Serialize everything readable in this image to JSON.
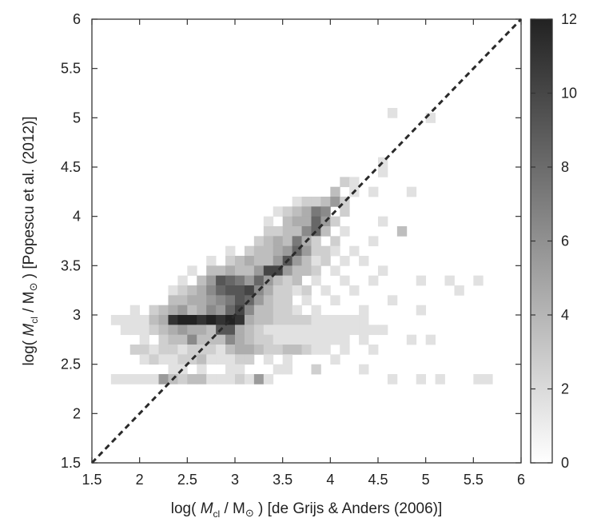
{
  "chart_data": {
    "type": "heatmap",
    "x_bin_width": 0.1,
    "y_bin_width": 0.1,
    "xlim": [
      1.5,
      6
    ],
    "ylim": [
      1.5,
      6
    ],
    "xticks": [
      "1.5",
      "2",
      "2.5",
      "3",
      "3.5",
      "4",
      "4.5",
      "5",
      "5.5",
      "6"
    ],
    "yticks": [
      "1.5",
      "2",
      "2.5",
      "3",
      "3.5",
      "4",
      "4.5",
      "5",
      "5.5",
      "6"
    ],
    "xlabel": "log( M_cl / M_⊙ ) [de Grijs & Anders (2006)]",
    "ylabel": "log( M_cl / M_⊙ ) [Popescu et al. (2012)]",
    "xlabel_parts": {
      "pre": "log( ",
      "m": "M",
      "sub": "cl",
      "mid": " / M",
      "sun": "⊙",
      "post": " ) [de Grijs & Anders (2006)]"
    },
    "ylabel_parts": {
      "pre": "log( ",
      "m": "M",
      "sub": "cl",
      "mid": " / M",
      "sun": "⊙",
      "post": " ) [Popescu et al. (2012)]"
    },
    "colorbar": {
      "min": 0,
      "max": 12,
      "ticks": [
        "0",
        "2",
        "4",
        "6",
        "8",
        "10",
        "12"
      ]
    },
    "reference_line": {
      "from": [
        1.5,
        1.5
      ],
      "to": [
        6,
        6
      ],
      "style": "dashed"
    },
    "cells": [
      [
        4.6,
        5.0,
        1
      ],
      [
        5.0,
        4.95,
        1
      ],
      [
        4.5,
        4.5,
        1
      ],
      [
        4.5,
        4.4,
        1
      ],
      [
        4.1,
        4.3,
        2
      ],
      [
        4.2,
        4.3,
        1
      ],
      [
        4.0,
        4.2,
        3
      ],
      [
        4.2,
        4.2,
        1
      ],
      [
        4.4,
        4.2,
        1
      ],
      [
        4.8,
        4.2,
        1
      ],
      [
        3.6,
        4.1,
        1
      ],
      [
        3.7,
        4.1,
        2
      ],
      [
        3.8,
        4.1,
        2
      ],
      [
        3.9,
        4.1,
        3
      ],
      [
        4.0,
        4.1,
        5
      ],
      [
        4.1,
        4.1,
        2
      ],
      [
        3.4,
        4.0,
        1
      ],
      [
        3.5,
        4.0,
        2
      ],
      [
        3.6,
        4.0,
        3
      ],
      [
        3.7,
        4.0,
        4
      ],
      [
        3.8,
        4.0,
        7
      ],
      [
        3.9,
        4.0,
        6
      ],
      [
        4.1,
        4.0,
        2
      ],
      [
        3.3,
        3.9,
        1
      ],
      [
        3.5,
        3.9,
        3
      ],
      [
        3.6,
        3.9,
        4
      ],
      [
        3.7,
        3.9,
        4
      ],
      [
        3.8,
        3.9,
        8
      ],
      [
        3.9,
        3.9,
        5
      ],
      [
        4.0,
        3.9,
        2
      ],
      [
        4.5,
        3.9,
        1
      ],
      [
        3.3,
        3.8,
        2
      ],
      [
        3.4,
        3.8,
        2
      ],
      [
        3.5,
        3.8,
        3
      ],
      [
        3.6,
        3.8,
        3
      ],
      [
        3.7,
        3.8,
        6
      ],
      [
        3.8,
        3.8,
        8
      ],
      [
        3.9,
        3.8,
        3
      ],
      [
        4.1,
        3.8,
        1
      ],
      [
        4.7,
        3.8,
        3
      ],
      [
        3.2,
        3.7,
        2
      ],
      [
        3.3,
        3.7,
        3
      ],
      [
        3.4,
        3.7,
        4
      ],
      [
        3.5,
        3.7,
        3
      ],
      [
        3.6,
        3.7,
        7
      ],
      [
        3.7,
        3.7,
        4
      ],
      [
        3.8,
        3.7,
        2
      ],
      [
        4.0,
        3.7,
        2
      ],
      [
        4.4,
        3.7,
        1
      ],
      [
        2.9,
        3.6,
        1
      ],
      [
        3.1,
        3.6,
        2
      ],
      [
        3.2,
        3.6,
        3
      ],
      [
        3.3,
        3.6,
        3
      ],
      [
        3.4,
        3.6,
        4
      ],
      [
        3.5,
        3.6,
        5
      ],
      [
        3.6,
        3.6,
        8
      ],
      [
        3.7,
        3.6,
        5
      ],
      [
        3.8,
        3.6,
        2
      ],
      [
        3.9,
        3.6,
        2
      ],
      [
        4.0,
        3.6,
        1
      ],
      [
        4.2,
        3.6,
        1
      ],
      [
        2.7,
        3.5,
        1
      ],
      [
        2.9,
        3.5,
        2
      ],
      [
        3.0,
        3.5,
        3
      ],
      [
        3.1,
        3.5,
        4
      ],
      [
        3.2,
        3.5,
        3
      ],
      [
        3.3,
        3.5,
        3
      ],
      [
        3.4,
        3.5,
        5
      ],
      [
        3.5,
        3.5,
        9
      ],
      [
        3.6,
        3.5,
        5
      ],
      [
        3.7,
        3.5,
        3
      ],
      [
        3.8,
        3.5,
        1
      ],
      [
        3.9,
        3.5,
        2
      ],
      [
        4.1,
        3.5,
        1
      ],
      [
        4.3,
        3.5,
        1
      ],
      [
        2.5,
        3.4,
        1
      ],
      [
        2.7,
        3.4,
        3
      ],
      [
        2.8,
        3.4,
        3
      ],
      [
        2.9,
        3.4,
        4
      ],
      [
        3.0,
        3.4,
        3
      ],
      [
        3.1,
        3.4,
        3
      ],
      [
        3.2,
        3.4,
        5
      ],
      [
        3.3,
        3.4,
        10
      ],
      [
        3.4,
        3.4,
        10
      ],
      [
        3.5,
        3.4,
        5
      ],
      [
        3.6,
        3.4,
        3
      ],
      [
        3.7,
        3.4,
        3
      ],
      [
        3.8,
        3.4,
        2
      ],
      [
        4.0,
        3.4,
        1
      ],
      [
        4.5,
        3.4,
        1
      ],
      [
        2.4,
        3.3,
        1
      ],
      [
        2.6,
        3.3,
        3
      ],
      [
        2.7,
        3.3,
        5
      ],
      [
        2.8,
        3.3,
        9
      ],
      [
        2.9,
        3.3,
        8
      ],
      [
        3.0,
        3.3,
        7
      ],
      [
        3.1,
        3.3,
        5
      ],
      [
        3.2,
        3.3,
        8
      ],
      [
        3.3,
        3.3,
        5
      ],
      [
        3.4,
        3.3,
        3
      ],
      [
        3.5,
        3.3,
        2
      ],
      [
        3.6,
        3.3,
        3
      ],
      [
        3.8,
        3.3,
        1
      ],
      [
        4.1,
        3.3,
        1
      ],
      [
        4.4,
        3.3,
        1
      ],
      [
        4.9,
        3.3,
        1
      ],
      [
        5.2,
        3.3,
        1
      ],
      [
        5.5,
        3.3,
        1
      ],
      [
        2.3,
        3.2,
        1
      ],
      [
        2.4,
        3.2,
        2
      ],
      [
        2.5,
        3.2,
        3
      ],
      [
        2.6,
        3.2,
        4
      ],
      [
        2.7,
        3.2,
        6
      ],
      [
        2.8,
        3.2,
        8
      ],
      [
        2.9,
        3.2,
        9
      ],
      [
        3.0,
        3.2,
        9
      ],
      [
        3.1,
        3.2,
        10
      ],
      [
        3.2,
        3.2,
        6
      ],
      [
        3.3,
        3.2,
        4
      ],
      [
        3.4,
        3.2,
        2
      ],
      [
        3.5,
        3.2,
        2
      ],
      [
        3.6,
        3.2,
        1
      ],
      [
        3.7,
        3.2,
        2
      ],
      [
        3.9,
        3.2,
        1
      ],
      [
        4.2,
        3.2,
        1
      ],
      [
        5.3,
        3.2,
        1
      ],
      [
        2.3,
        3.1,
        3
      ],
      [
        2.4,
        3.1,
        3
      ],
      [
        2.5,
        3.1,
        4
      ],
      [
        2.6,
        3.1,
        4
      ],
      [
        2.7,
        3.1,
        5
      ],
      [
        2.8,
        3.1,
        6
      ],
      [
        2.9,
        3.1,
        7
      ],
      [
        3.0,
        3.1,
        9
      ],
      [
        3.1,
        3.1,
        8
      ],
      [
        3.2,
        3.1,
        5
      ],
      [
        3.3,
        3.1,
        3
      ],
      [
        3.4,
        3.1,
        2
      ],
      [
        3.5,
        3.1,
        2
      ],
      [
        3.7,
        3.1,
        1
      ],
      [
        4.0,
        3.1,
        1
      ],
      [
        4.6,
        3.1,
        1
      ],
      [
        1.9,
        3.0,
        1
      ],
      [
        2.1,
        3.0,
        2
      ],
      [
        2.2,
        3.0,
        3
      ],
      [
        2.3,
        3.0,
        4
      ],
      [
        2.4,
        3.0,
        5
      ],
      [
        2.5,
        3.0,
        3
      ],
      [
        2.6,
        3.0,
        4
      ],
      [
        2.7,
        3.0,
        6
      ],
      [
        2.8,
        3.0,
        5
      ],
      [
        2.9,
        3.0,
        8
      ],
      [
        3.0,
        3.0,
        10
      ],
      [
        3.1,
        3.0,
        6
      ],
      [
        3.2,
        3.0,
        3
      ],
      [
        3.3,
        3.0,
        3
      ],
      [
        3.4,
        3.0,
        2
      ],
      [
        3.5,
        3.0,
        2
      ],
      [
        3.6,
        3.0,
        1
      ],
      [
        3.8,
        3.0,
        1
      ],
      [
        4.3,
        3.0,
        1
      ],
      [
        4.9,
        3.0,
        1
      ],
      [
        1.7,
        2.9,
        1
      ],
      [
        1.8,
        2.9,
        1
      ],
      [
        1.9,
        2.9,
        1
      ],
      [
        2.0,
        2.9,
        1
      ],
      [
        2.1,
        2.9,
        3
      ],
      [
        2.2,
        2.9,
        4
      ],
      [
        2.3,
        2.9,
        11
      ],
      [
        2.4,
        2.9,
        12
      ],
      [
        2.5,
        2.9,
        12
      ],
      [
        2.6,
        2.9,
        11
      ],
      [
        2.7,
        2.9,
        12
      ],
      [
        2.8,
        2.9,
        11
      ],
      [
        2.9,
        2.9,
        12
      ],
      [
        3.0,
        2.9,
        11
      ],
      [
        3.1,
        2.9,
        4
      ],
      [
        3.2,
        2.9,
        3
      ],
      [
        3.3,
        2.9,
        3
      ],
      [
        3.4,
        2.9,
        2
      ],
      [
        3.5,
        2.9,
        2
      ],
      [
        3.6,
        2.9,
        2
      ],
      [
        3.7,
        2.9,
        2
      ],
      [
        3.8,
        2.9,
        1
      ],
      [
        3.9,
        2.9,
        1
      ],
      [
        4.0,
        2.9,
        1
      ],
      [
        4.1,
        2.9,
        1
      ],
      [
        4.2,
        2.9,
        1
      ],
      [
        4.3,
        2.9,
        1
      ],
      [
        1.8,
        2.8,
        1
      ],
      [
        1.9,
        2.8,
        1
      ],
      [
        2.0,
        2.8,
        1
      ],
      [
        2.1,
        2.8,
        2
      ],
      [
        2.2,
        2.8,
        3
      ],
      [
        2.3,
        2.8,
        4
      ],
      [
        2.4,
        2.8,
        5
      ],
      [
        2.5,
        2.8,
        4
      ],
      [
        2.6,
        2.8,
        4
      ],
      [
        2.7,
        2.8,
        3
      ],
      [
        2.8,
        2.8,
        9
      ],
      [
        2.9,
        2.8,
        9
      ],
      [
        3.0,
        2.8,
        4
      ],
      [
        3.1,
        2.8,
        3
      ],
      [
        3.2,
        2.8,
        2
      ],
      [
        3.3,
        2.8,
        1
      ],
      [
        3.4,
        2.8,
        1
      ],
      [
        3.5,
        2.8,
        1
      ],
      [
        3.6,
        2.8,
        1
      ],
      [
        3.7,
        2.8,
        1
      ],
      [
        3.8,
        2.8,
        1
      ],
      [
        3.9,
        2.8,
        1
      ],
      [
        4.0,
        2.8,
        1
      ],
      [
        4.1,
        2.8,
        1
      ],
      [
        4.2,
        2.8,
        1
      ],
      [
        4.3,
        2.8,
        1
      ],
      [
        4.4,
        2.8,
        1
      ],
      [
        4.5,
        2.8,
        1
      ],
      [
        2.0,
        2.7,
        1
      ],
      [
        2.2,
        2.7,
        2
      ],
      [
        2.3,
        2.7,
        3
      ],
      [
        2.4,
        2.7,
        3
      ],
      [
        2.5,
        2.7,
        6
      ],
      [
        2.6,
        2.7,
        3
      ],
      [
        2.7,
        2.7,
        3
      ],
      [
        2.8,
        2.7,
        3
      ],
      [
        2.9,
        2.7,
        6
      ],
      [
        3.0,
        2.7,
        4
      ],
      [
        3.1,
        2.7,
        3
      ],
      [
        3.2,
        2.7,
        2
      ],
      [
        3.3,
        2.7,
        2
      ],
      [
        3.4,
        2.7,
        1
      ],
      [
        3.5,
        2.7,
        1
      ],
      [
        3.6,
        2.7,
        1
      ],
      [
        3.7,
        2.7,
        1
      ],
      [
        3.8,
        2.7,
        1
      ],
      [
        3.9,
        2.7,
        1
      ],
      [
        4.0,
        2.7,
        1
      ],
      [
        4.1,
        2.7,
        1
      ],
      [
        4.3,
        2.7,
        1
      ],
      [
        4.8,
        2.7,
        1
      ],
      [
        5.0,
        2.7,
        1
      ],
      [
        1.9,
        2.6,
        2
      ],
      [
        2.0,
        2.6,
        2
      ],
      [
        2.1,
        2.6,
        1
      ],
      [
        2.2,
        2.6,
        2
      ],
      [
        2.3,
        2.6,
        2
      ],
      [
        2.4,
        2.6,
        1
      ],
      [
        2.5,
        2.6,
        2
      ],
      [
        2.6,
        2.6,
        2
      ],
      [
        2.7,
        2.6,
        2
      ],
      [
        2.8,
        2.6,
        1
      ],
      [
        2.9,
        2.6,
        3
      ],
      [
        3.0,
        2.6,
        4
      ],
      [
        3.1,
        2.6,
        4
      ],
      [
        3.2,
        2.6,
        3
      ],
      [
        3.3,
        2.6,
        2
      ],
      [
        3.4,
        2.6,
        2
      ],
      [
        3.5,
        2.6,
        3
      ],
      [
        3.6,
        2.6,
        3
      ],
      [
        3.7,
        2.6,
        2
      ],
      [
        3.8,
        2.6,
        1
      ],
      [
        3.9,
        2.6,
        1
      ],
      [
        4.1,
        2.6,
        1
      ],
      [
        4.4,
        2.6,
        1
      ],
      [
        2.0,
        2.5,
        1
      ],
      [
        2.1,
        2.5,
        2
      ],
      [
        2.2,
        2.5,
        1
      ],
      [
        2.3,
        2.5,
        1
      ],
      [
        2.4,
        2.5,
        2
      ],
      [
        2.5,
        2.5,
        2
      ],
      [
        2.6,
        2.5,
        3
      ],
      [
        2.7,
        2.5,
        1
      ],
      [
        2.8,
        2.5,
        1
      ],
      [
        2.9,
        2.5,
        1
      ],
      [
        3.0,
        2.5,
        2
      ],
      [
        3.1,
        2.5,
        2
      ],
      [
        3.3,
        2.5,
        1
      ],
      [
        3.5,
        2.5,
        1
      ],
      [
        4.0,
        2.5,
        1
      ],
      [
        2.3,
        2.4,
        1
      ],
      [
        2.4,
        2.4,
        1
      ],
      [
        2.6,
        2.4,
        1
      ],
      [
        2.9,
        2.4,
        1
      ],
      [
        3.0,
        2.4,
        1
      ],
      [
        3.4,
        2.4,
        1
      ],
      [
        3.5,
        2.4,
        1
      ],
      [
        3.8,
        2.4,
        2
      ],
      [
        4.3,
        2.4,
        1
      ],
      [
        1.7,
        2.3,
        1
      ],
      [
        1.8,
        2.3,
        1
      ],
      [
        1.9,
        2.3,
        1
      ],
      [
        2.0,
        2.3,
        1
      ],
      [
        2.1,
        2.3,
        1
      ],
      [
        2.2,
        2.3,
        5
      ],
      [
        2.3,
        2.3,
        3
      ],
      [
        2.4,
        2.3,
        2
      ],
      [
        2.5,
        2.3,
        3
      ],
      [
        2.6,
        2.3,
        3
      ],
      [
        2.7,
        2.3,
        1
      ],
      [
        2.8,
        2.3,
        1
      ],
      [
        2.9,
        2.3,
        1
      ],
      [
        3.0,
        2.3,
        2
      ],
      [
        3.1,
        2.3,
        1
      ],
      [
        3.2,
        2.3,
        5
      ],
      [
        3.3,
        2.3,
        1
      ],
      [
        4.6,
        2.3,
        1
      ],
      [
        4.9,
        2.3,
        1
      ],
      [
        5.1,
        2.3,
        1
      ],
      [
        5.5,
        2.3,
        1
      ],
      [
        5.6,
        2.3,
        1
      ]
    ]
  }
}
